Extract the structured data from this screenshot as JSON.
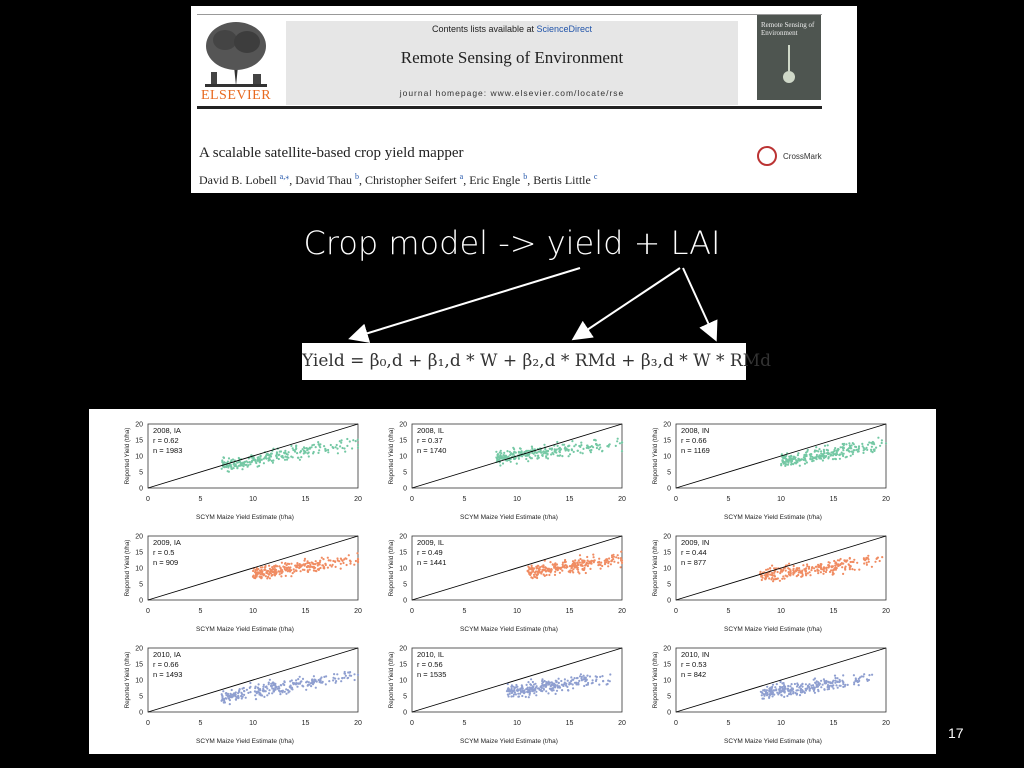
{
  "paper": {
    "publisher": "ELSEVIER",
    "contents_prefix": "Contents lists available at ",
    "contents_link": "ScienceDirect",
    "journal": "Remote Sensing of Environment",
    "homepage": "journal homepage: www.elsevier.com/locate/rse",
    "cover_title": "Remote Sensing of Environment",
    "title": "A scalable satellite-based crop yield mapper",
    "authors": [
      {
        "name": "David B. Lobell",
        "sup": "a,⁎"
      },
      {
        "name": "David Thau",
        "sup": "b"
      },
      {
        "name": "Christopher Seifert",
        "sup": "a"
      },
      {
        "name": "Eric Engle",
        "sup": "b"
      },
      {
        "name": "Bertis Little",
        "sup": "c"
      }
    ],
    "crossmark": "CrossMark"
  },
  "subtitle": "Crop model -> yield + LAI",
  "equation": "Yield = β₀,d + β₁,d * W + β₂,d * RMd + β₃,d * W * RMd",
  "page_number": "17",
  "colors": {
    "2008": "#74c8a4",
    "2009": "#f08c62",
    "2010": "#8f9fd0"
  },
  "chart_data": {
    "type": "scatter",
    "xlabel": "SCYM  Maize Yield Estimate (t/ha)",
    "ylabel": "Reported Yield (t/ha)",
    "xlim": [
      0,
      20
    ],
    "ylim": [
      0,
      20
    ],
    "xticks": [
      0,
      5,
      10,
      15,
      20
    ],
    "yticks": [
      0,
      5,
      10,
      15,
      20
    ],
    "reference_line": "1:1",
    "panels": [
      {
        "label": "2008, IA",
        "r": "r = 0.62",
        "n": "n = 1983",
        "year": "2008",
        "x_range": [
          7,
          20.5
        ],
        "y_center": 11.5,
        "slope": 0.55
      },
      {
        "label": "2008, IL",
        "r": "r = 0.37",
        "n": "n = 1740",
        "year": "2008",
        "x_range": [
          8,
          20.5
        ],
        "y_center": 12,
        "slope": 0.35
      },
      {
        "label": "2008, IN",
        "r": "r = 0.66",
        "n": "n = 1169",
        "year": "2008",
        "x_range": [
          10,
          20.5
        ],
        "y_center": 11,
        "slope": 0.5
      },
      {
        "label": "2009, IA",
        "r": "r = 0.5",
        "n": "n = 909",
        "year": "2009",
        "x_range": [
          10,
          20.5
        ],
        "y_center": 10.5,
        "slope": 0.45
      },
      {
        "label": "2009, IL",
        "r": "r = 0.49",
        "n": "n = 1441",
        "year": "2009",
        "x_range": [
          11,
          20.5
        ],
        "y_center": 10.5,
        "slope": 0.45
      },
      {
        "label": "2009, IN",
        "r": "r = 0.44",
        "n": "n = 877",
        "year": "2009",
        "x_range": [
          8,
          20.5
        ],
        "y_center": 10.5,
        "slope": 0.4
      },
      {
        "label": "2010, IA",
        "r": "r = 0.66",
        "n": "n = 1493",
        "year": "2010",
        "x_range": [
          7,
          20.5
        ],
        "y_center": 9,
        "slope": 0.55
      },
      {
        "label": "2010, IL",
        "r": "r = 0.56",
        "n": "n = 1535",
        "year": "2010",
        "x_range": [
          9,
          19
        ],
        "y_center": 9,
        "slope": 0.45
      },
      {
        "label": "2010, IN",
        "r": "r = 0.53",
        "n": "n = 842",
        "year": "2010",
        "x_range": [
          8,
          19
        ],
        "y_center": 9,
        "slope": 0.45
      }
    ]
  }
}
